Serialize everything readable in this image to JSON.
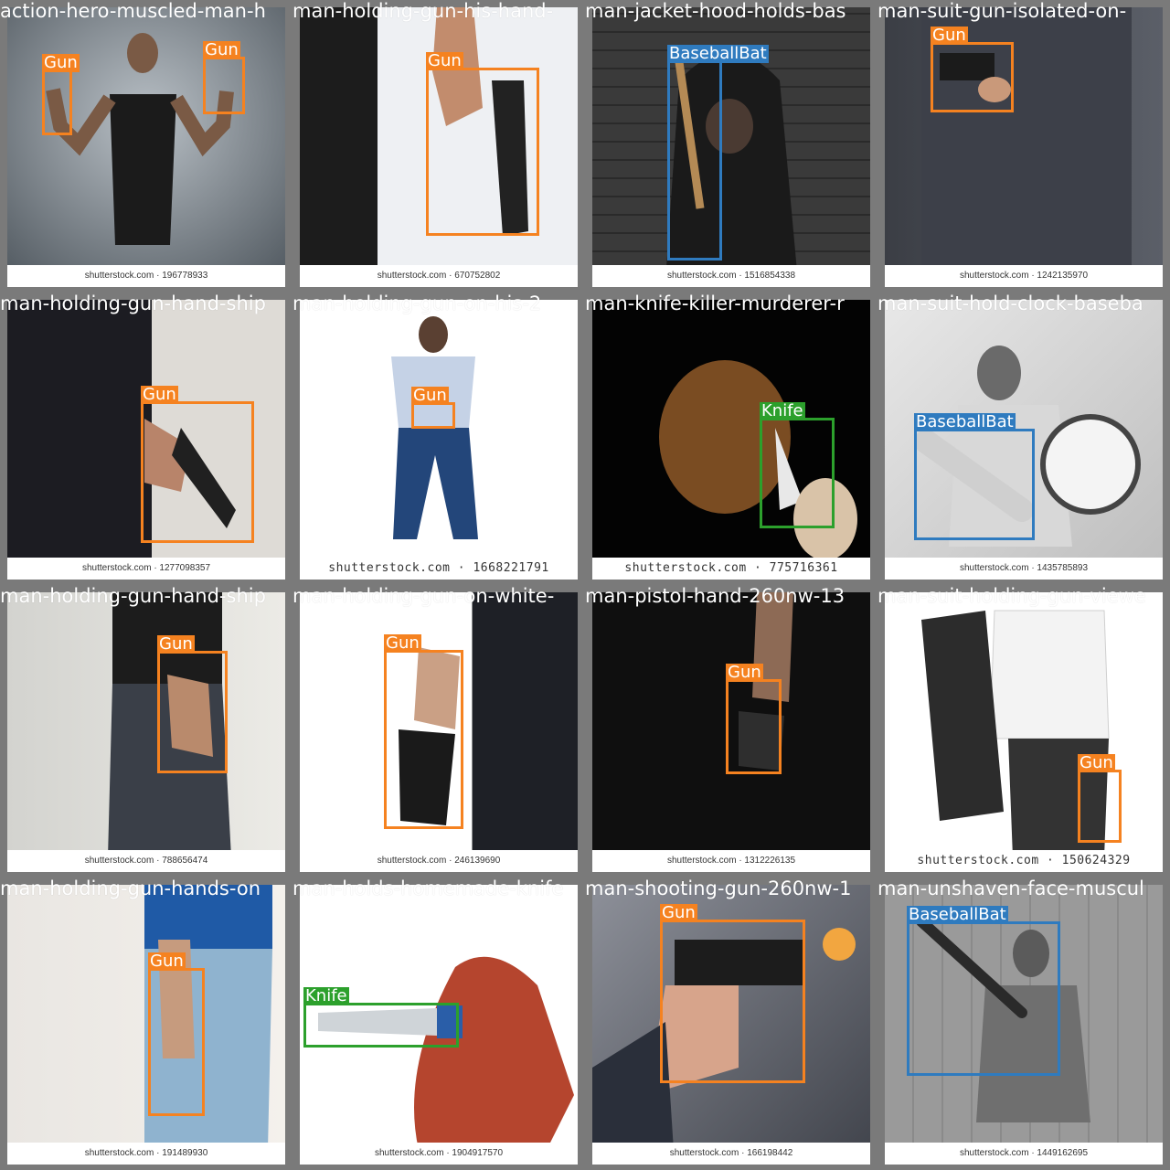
{
  "colors": {
    "Gun": "#f58220",
    "BaseballBat": "#2f7bbf",
    "Knife": "#2ca02c"
  },
  "tiles": [
    {
      "filename": "action-hero-muscled-man-h",
      "watermark": "shutterstock.com · 196778933",
      "labels": [
        "Gun",
        "Gun"
      ]
    },
    {
      "filename": "man-holding-gun-his-hand-",
      "watermark": "shutterstock.com · 670752802",
      "labels": [
        "Gun"
      ]
    },
    {
      "filename": "man-jacket-hood-holds-bas",
      "watermark": "shutterstock.com · 1516854338",
      "labels": [
        "BaseballBat"
      ]
    },
    {
      "filename": "man-suit-gun-isolated-on-",
      "watermark": "shutterstock.com · 1242135970",
      "labels": [
        "Gun"
      ]
    },
    {
      "filename": "man-holding-gun-hand-ship",
      "watermark": "shutterstock.com · 1277098357",
      "labels": [
        "Gun"
      ]
    },
    {
      "filename": "man-holding-gun-on-his-2",
      "watermark": "shutterstock.com · 1668221791",
      "labels": [
        "Gun"
      ]
    },
    {
      "filename": "man-knife-killer-murderer-r",
      "watermark": "shutterstock.com · 775716361",
      "labels": [
        "Knife"
      ]
    },
    {
      "filename": "man-suit-hold-clock-baseba",
      "watermark": "shutterstock.com · 1435785893",
      "labels": [
        "BaseballBat"
      ]
    },
    {
      "filename": "man-holding-gun-hand-ship",
      "watermark": "shutterstock.com · 788656474",
      "labels": [
        "Gun"
      ]
    },
    {
      "filename": "man-holding-gun-on-white-",
      "watermark": "shutterstock.com · 246139690",
      "labels": [
        "Gun"
      ]
    },
    {
      "filename": "man-pistol-hand-260nw-13",
      "watermark": "shutterstock.com · 1312226135",
      "labels": [
        "Gun"
      ]
    },
    {
      "filename": "man-suit-holding-gun-viewe",
      "watermark": "shutterstock.com · 150624329",
      "labels": [
        "Gun"
      ]
    },
    {
      "filename": "man-holding-gun-hands-on",
      "watermark": "shutterstock.com · 191489930",
      "labels": [
        "Gun"
      ]
    },
    {
      "filename": "man-holds-homemade-knife",
      "watermark": "shutterstock.com · 1904917570",
      "labels": [
        "Knife"
      ]
    },
    {
      "filename": "man-shooting-gun-260nw-1",
      "watermark": "shutterstock.com · 166198442",
      "labels": [
        "Gun"
      ]
    },
    {
      "filename": "man-unshaven-face-muscul",
      "watermark": "shutterstock.com · 1449162695",
      "labels": [
        "BaseballBat"
      ]
    }
  ]
}
